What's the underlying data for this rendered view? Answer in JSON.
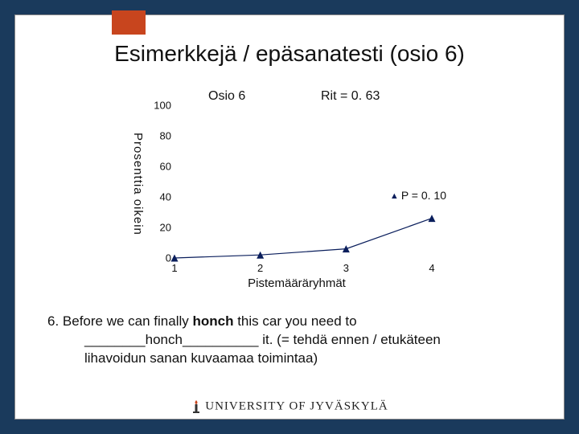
{
  "slide": {
    "title": "Esimerkkejä / epäsanatesti (osio 6)",
    "accent_color": "#c8451e",
    "background_outer": "#1a3a5c"
  },
  "chart": {
    "type": "line",
    "title_left": "Osio 6",
    "title_right": "Rit = 0. 63",
    "y_axis_label": "Prosenttia oikein",
    "x_axis_label": "Pistemääräryhmät",
    "ylim": [
      0,
      100
    ],
    "xlim": [
      1,
      4
    ],
    "y_ticks": [
      0,
      20,
      40,
      60,
      80,
      100
    ],
    "x_ticks": [
      1,
      2,
      3,
      4
    ],
    "series": {
      "label": "P = 0. 10",
      "marker": "triangle",
      "marker_color": "#0a1e5c",
      "line_color": "#0a1e5c",
      "line_width": 1.2,
      "points": [
        {
          "x": 1,
          "y": 0
        },
        {
          "x": 2,
          "y": 2
        },
        {
          "x": 3,
          "y": 6
        },
        {
          "x": 4,
          "y": 26
        }
      ]
    },
    "tick_fontsize": 13,
    "label_fontsize": 15,
    "title_fontsize": 16,
    "background_color": "#ffffff"
  },
  "body": {
    "line1_prefix": "6. Before we can finally ",
    "line1_bold": "honch",
    "line1_suffix": " this car you need to",
    "line2_blank1": "________",
    "line2_mid": "honch",
    "line2_blank2": "__________",
    "line2_suffix": " it. (= tehdä ennen / etukäteen",
    "line3": "lihavoidun sanan kuvaamaa toimintaa)"
  },
  "footer": {
    "text": "UNIVERSITY OF JYVÄSKYLÄ"
  }
}
